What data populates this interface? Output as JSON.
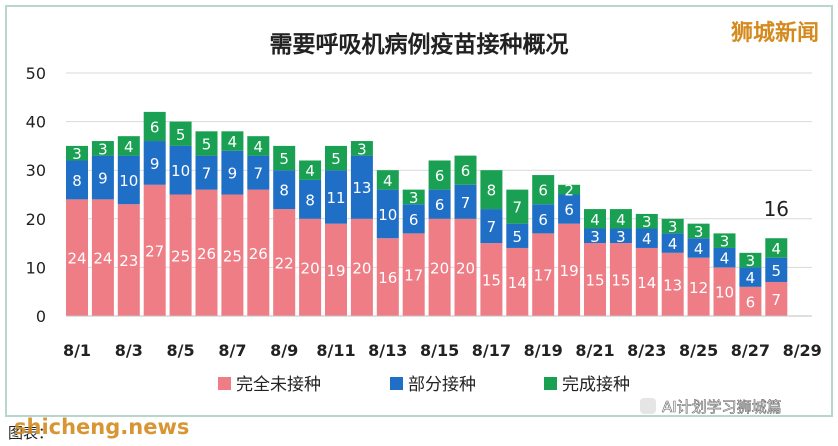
{
  "watermark_top": "狮城新闻",
  "watermark_bottom": "shicheng.news",
  "wechat_account": "AI计划学习狮城篇",
  "source_text": "图表：",
  "colors": {
    "unvaccinated": "#ef7d86",
    "partial": "#1f6fc6",
    "full": "#1aa052",
    "grid": "#d9d9d9",
    "frame": "#b9d6cc",
    "watermark": "#d48a1e"
  },
  "chart_data": {
    "type": "bar",
    "stacked": true,
    "title": "需要呼吸机病例疫苗接种概况",
    "xlabel": "",
    "ylabel": "",
    "ylim": [
      0,
      50
    ],
    "yticks": [
      "0",
      "10",
      "20",
      "30",
      "40",
      "50"
    ],
    "grid": true,
    "legend_position": "bottom",
    "categories": [
      "8/1",
      "8/2",
      "8/3",
      "8/4",
      "8/5",
      "8/6",
      "8/7",
      "8/8",
      "8/9",
      "8/10",
      "8/11",
      "8/12",
      "8/13",
      "8/14",
      "8/15",
      "8/16",
      "8/17",
      "8/18",
      "8/19",
      "8/20",
      "8/21",
      "8/22",
      "8/23",
      "8/24",
      "8/25",
      "8/26",
      "8/27",
      "8/28"
    ],
    "x_tick_labels": [
      "8/1",
      "8/3",
      "8/5",
      "8/7",
      "8/9",
      "8/11",
      "8/13",
      "8/15",
      "8/17",
      "8/19",
      "8/21",
      "8/23",
      "8/25",
      "8/27",
      "8/29"
    ],
    "series": [
      {
        "name": "完全未接种",
        "values": [
          24,
          24,
          23,
          27,
          25,
          26,
          25,
          26,
          22,
          20,
          19,
          20,
          16,
          17,
          20,
          20,
          15,
          14,
          17,
          19,
          15,
          15,
          14,
          13,
          12,
          10,
          6,
          7
        ]
      },
      {
        "name": "部分接种",
        "values": [
          8,
          9,
          10,
          9,
          10,
          7,
          9,
          7,
          8,
          8,
          11,
          13,
          10,
          6,
          6,
          7,
          7,
          5,
          6,
          6,
          3,
          3,
          4,
          4,
          4,
          4,
          4,
          5
        ]
      },
      {
        "name": "完成接种",
        "values": [
          3,
          3,
          4,
          6,
          5,
          5,
          4,
          4,
          5,
          4,
          5,
          3,
          4,
          3,
          6,
          6,
          8,
          7,
          6,
          2,
          4,
          4,
          3,
          3,
          3,
          3,
          3,
          4
        ]
      }
    ],
    "annotations": [
      {
        "category": "8/28",
        "text": "16"
      }
    ]
  }
}
